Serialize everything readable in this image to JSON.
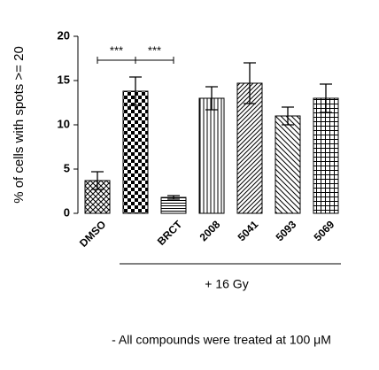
{
  "chart_data": {
    "type": "bar",
    "ylabel": "% of cells with spots >= 20",
    "categories": [
      "DMSO",
      null,
      "BRCT",
      "2008",
      "5041",
      "5093",
      "5069"
    ],
    "values": [
      3.7,
      13.8,
      1.8,
      13.0,
      14.7,
      11.0,
      13.0
    ],
    "errors": [
      1.0,
      1.6,
      0.2,
      1.3,
      2.3,
      1.0,
      1.6
    ],
    "patterns": [
      "crosshatch",
      "checker",
      "hlines",
      "vlines",
      "diag",
      "diag-back",
      "grid"
    ],
    "color": "#000000",
    "ylim": [
      0,
      20
    ],
    "yticks": [
      0,
      5,
      10,
      15,
      20
    ],
    "annotations": [
      "***",
      "***"
    ],
    "group_label": "+ 16 Gy",
    "footnote": "- All compounds were treated at 100 μM"
  }
}
